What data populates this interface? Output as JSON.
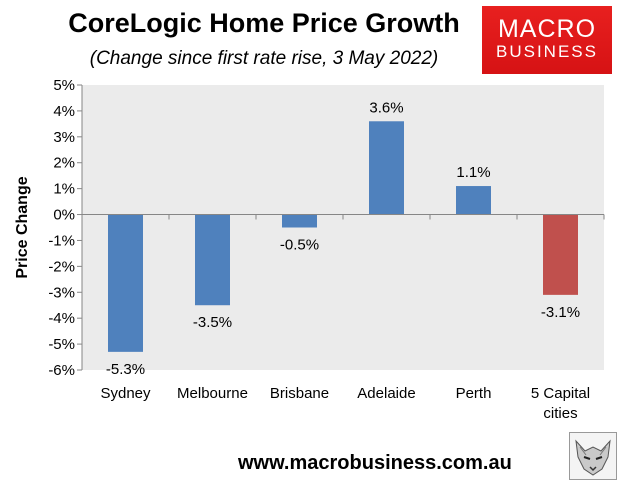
{
  "chart_data": {
    "type": "bar",
    "title": "CoreLogic Home Price Growth",
    "subtitle": "(Change since first rate rise, 3 May 2022)",
    "ylabel": "Price Change",
    "ylim": [
      -6,
      5
    ],
    "yticks": [
      "5%",
      "4%",
      "3%",
      "2%",
      "1%",
      "0%",
      "-1%",
      "-2%",
      "-3%",
      "-4%",
      "-5%",
      "-6%"
    ],
    "categories": [
      [
        "Sydney"
      ],
      [
        "Melbourne"
      ],
      [
        "Brisbane"
      ],
      [
        "Adelaide"
      ],
      [
        "Perth"
      ],
      [
        "5 Capital",
        "cities"
      ]
    ],
    "values": [
      -5.3,
      -3.5,
      -0.5,
      3.6,
      1.1,
      -3.1
    ],
    "data_labels": [
      "-5.3%",
      "-3.5%",
      "-0.5%",
      "3.6%",
      "1.1%",
      "-3.1%"
    ],
    "colors": [
      "#4f81bd",
      "#4f81bd",
      "#4f81bd",
      "#4f81bd",
      "#4f81bd",
      "#c0504d"
    ],
    "grid": false,
    "legend": "none"
  },
  "logo": {
    "line1": "MACRO",
    "line2": "BUSINESS",
    "color": "#e31b1c"
  },
  "footer": {
    "website": "www.macrobusiness.com.au"
  },
  "icons": {
    "corner": "wolf-logo-icon"
  }
}
